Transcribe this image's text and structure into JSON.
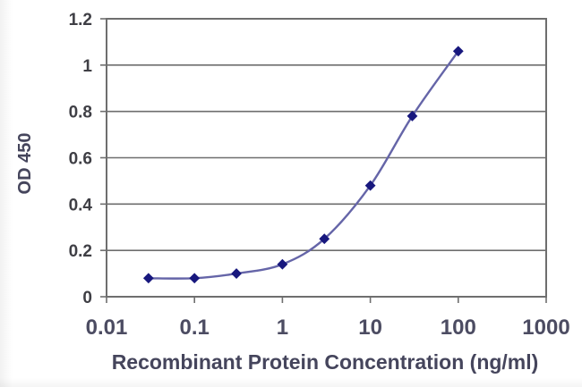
{
  "chart_data": {
    "type": "line",
    "title": "",
    "xlabel": "Recombinant Protein Concentration (ng/ml)",
    "ylabel": "OD 450",
    "x_scale": "log10",
    "xlim": [
      0.01,
      1000
    ],
    "ylim": [
      0,
      1.2
    ],
    "x_ticks": [
      0.01,
      0.1,
      1,
      10,
      100,
      1000
    ],
    "x_tick_labels": [
      "0.01",
      "0.1",
      "1",
      "10",
      "100",
      "1000"
    ],
    "y_ticks": [
      0,
      0.2,
      0.4,
      0.6,
      0.8,
      1,
      1.2
    ],
    "y_tick_labels": [
      "0",
      "0.2",
      "0.4",
      "0.6",
      "0.8",
      "1",
      "1.2"
    ],
    "grid": "horizontal-only",
    "legend": "none",
    "series": [
      {
        "name": "OD 450",
        "marker": "diamond",
        "line_style": "smooth",
        "x": [
          0.03,
          0.1,
          0.3,
          1,
          3,
          10,
          30,
          100
        ],
        "y": [
          0.08,
          0.08,
          0.1,
          0.14,
          0.25,
          0.48,
          0.78,
          1.06
        ]
      }
    ],
    "colors": {
      "line": "#6565a8",
      "marker": "#18187e",
      "grid": "#6e6e6e",
      "frame": "#6e6e6e",
      "y_tick_text": "#3f3f45",
      "x_tick_text": "#4c4c62",
      "axis_title_text": "#45455c",
      "background": "#ffffff"
    }
  }
}
